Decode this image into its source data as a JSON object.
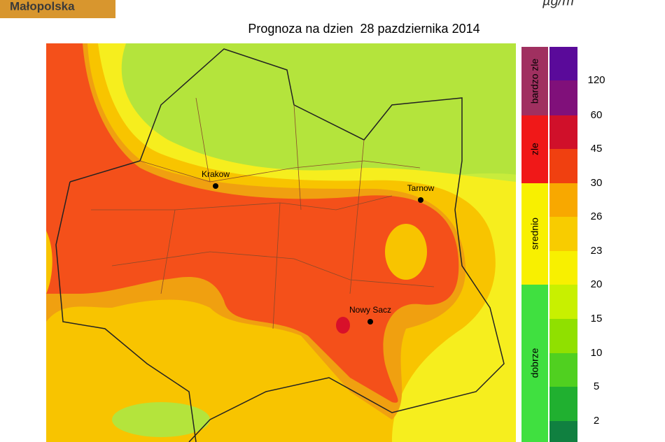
{
  "header": {
    "logo": "Małopolska",
    "unit": "µg/m"
  },
  "map": {
    "title": "Prognoza na dzien  28 pazdziernika 2014",
    "cities": [
      "Krakow",
      "Tarnow",
      "Nowy Sacz"
    ]
  },
  "legend": {
    "categories": [
      "bardzo zle",
      "zle",
      "srednio",
      "dobrze"
    ],
    "ticks": [
      120,
      60,
      45,
      30,
      26,
      23,
      20,
      15,
      10,
      5,
      2
    ]
  }
}
